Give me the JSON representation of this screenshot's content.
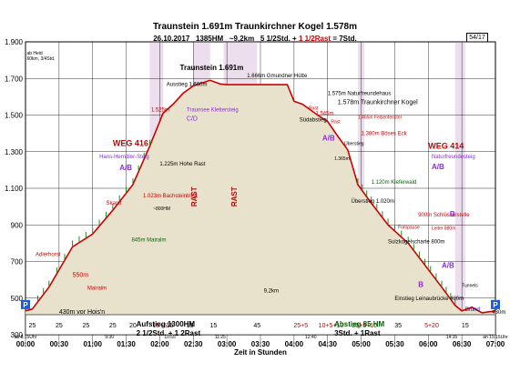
{
  "chart_data": {
    "type": "area",
    "title": "Traunstein 1.691m Traunkirchner Kogel 1.578m",
    "subtitle": "26.10.2017   1385HM   ~9,2km    5 1/2Std. + 1 1/2Rast = 7Std.",
    "subtitle_parts": {
      "date": "26.10.2017",
      "hm": "1385HM",
      "km": "~9,2km",
      "std": "5 1/2Std. +",
      "rast": "1 1/2Rast",
      "total": "= 7Std."
    },
    "page_number": "54/17",
    "xlabel": "Zeit in Stunden",
    "xlim": [
      0,
      7
    ],
    "ylim": [
      300,
      1900
    ],
    "y_ticks": [
      300,
      500,
      700,
      900,
      1100,
      1300,
      1500,
      1700,
      1900
    ],
    "y_tick_labels": [
      "300",
      "500",
      "700",
      "900",
      "1.100",
      "1.300",
      "1.500",
      "1.700",
      "1.900"
    ],
    "x_ticks": [
      0,
      0.5,
      1,
      1.5,
      2,
      2.5,
      3,
      3.5,
      4,
      4.5,
      5,
      5.5,
      6,
      6.5,
      7
    ],
    "x_tick_labels": [
      "00:00",
      "00:30",
      "01:00",
      "01:30",
      "02:00",
      "02:30",
      "03:00",
      "03:30",
      "04:00",
      "04:30",
      "05:00",
      "05:30",
      "06:00",
      "06:30",
      "07:00"
    ],
    "profile": {
      "x": [
        0,
        0.1,
        0.35,
        0.7,
        1.0,
        1.3,
        1.6,
        1.85,
        2.05,
        2.2,
        2.35,
        2.5,
        2.75,
        2.9,
        3.0,
        3.4,
        3.6,
        3.9,
        4.0,
        4.12,
        4.18,
        4.35,
        4.5,
        4.65,
        4.8,
        4.95,
        5.15,
        5.4,
        5.7,
        5.95,
        6.2,
        6.4,
        6.5,
        6.65,
        6.8,
        7.0
      ],
      "y": [
        430,
        440,
        560,
        780,
        850,
        980,
        1120,
        1330,
        1510,
        1560,
        1620,
        1660,
        1690,
        1670,
        1666,
        1666,
        1666,
        1666,
        1575,
        1560,
        1545,
        1500,
        1465,
        1385,
        1310,
        1120,
        1020,
        900,
        800,
        680,
        560,
        460,
        430,
        450,
        420,
        430
      ]
    },
    "rest_bands": [
      {
        "x0": 1.85,
        "x1": 2.05,
        "label": ""
      },
      {
        "x0": 2.5,
        "x1": 2.75,
        "label": "RAST"
      },
      {
        "x0": 2.95,
        "x1": 3.45,
        "label": "RAST"
      },
      {
        "x0": 4.95,
        "x1": 5.05,
        "label": ""
      },
      {
        "x0": 6.4,
        "x1": 6.55,
        "label": ""
      }
    ],
    "segment_minutes": [
      {
        "x": 0.1,
        "label": "25"
      },
      {
        "x": 0.5,
        "label": "25"
      },
      {
        "x": 0.9,
        "label": "25"
      },
      {
        "x": 1.3,
        "label": "25"
      },
      {
        "x": 1.6,
        "label": "20"
      },
      {
        "x": 2.0,
        "label": "15+5"
      },
      {
        "x": 2.15,
        "label": "15"
      },
      {
        "x": 2.45,
        "label": "15"
      },
      {
        "x": 2.8,
        "label": "15"
      },
      {
        "x": 3.45,
        "label": "45"
      },
      {
        "x": 4.1,
        "label": "25+5"
      },
      {
        "x": 4.55,
        "label": "10+5+10"
      },
      {
        "x": 5.05,
        "label": "20+5+10"
      },
      {
        "x": 5.55,
        "label": "35"
      },
      {
        "x": 6.05,
        "label": "5+20"
      },
      {
        "x": 6.55,
        "label": "15"
      }
    ],
    "times_bottom": [
      {
        "x": 0.0,
        "label": "ab 8:15Uhr"
      },
      {
        "x": 1.25,
        "label": "9:30"
      },
      {
        "x": 2.15,
        "label": "10:55"
      },
      {
        "x": 2.9,
        "label": "11:25"
      },
      {
        "x": 4.25,
        "label": "12:40"
      },
      {
        "x": 6.35,
        "label": "14:35"
      },
      {
        "x": 7.0,
        "label": "an 15:15Uhr"
      }
    ],
    "annotations": [
      {
        "x": 0.02,
        "y": 1830,
        "text": "ab Heid\n60km, 3/4Std.",
        "color": "#000000",
        "size": 5
      },
      {
        "x": 2.45,
        "y": 1830,
        "text": "",
        "color": "#000000",
        "size": 5
      },
      {
        "x": 1.3,
        "y": 1330,
        "text": "WEG 416",
        "color": "#cc0000",
        "size": 9
      },
      {
        "x": 1.1,
        "y": 1265,
        "text": "Hans-Herndler-Steig",
        "color": "#8a2be2",
        "size": 6
      },
      {
        "x": 1.4,
        "y": 1200,
        "text": "A/B",
        "color": "#8a2be2",
        "size": 8
      },
      {
        "x": 0.92,
        "y": 545,
        "text": "Mairalm",
        "color": "#cc0000",
        "size": 6
      },
      {
        "x": 0.7,
        "y": 615,
        "text": "550m",
        "color": "#cc0000",
        "size": 7
      },
      {
        "x": 0.15,
        "y": 730,
        "text": "Adlerhorst",
        "color": "#cc0000",
        "size": 6
      },
      {
        "x": 1.58,
        "y": 810,
        "text": "845m Mairalm",
        "color": "#006400",
        "size": 6
      },
      {
        "x": 1.2,
        "y": 1010,
        "text": "Skarst",
        "color": "#cc0000",
        "size": 6
      },
      {
        "x": 1.75,
        "y": 1050,
        "text": "1.023m Bachsteinblick",
        "color": "#cc0000",
        "size": 6
      },
      {
        "x": 1.9,
        "y": 980,
        "text": "~800HM",
        "color": "#000000",
        "size": 5
      },
      {
        "x": 2.0,
        "y": 1225,
        "text": "1.225m Hohe Rast",
        "color": "#000000",
        "size": 6
      },
      {
        "x": 1.87,
        "y": 1520,
        "text": "1.525m",
        "color": "#cc0000",
        "size": 6
      },
      {
        "x": 2.1,
        "y": 1660,
        "text": "Ausstieg 1.660m",
        "color": "#000000",
        "size": 6
      },
      {
        "x": 2.4,
        "y": 1520,
        "text": "Traunsee Klettersteig",
        "color": "#8a2be2",
        "size": 6
      },
      {
        "x": 2.4,
        "y": 1470,
        "text": "C/D",
        "color": "#8a2be2",
        "size": 7
      },
      {
        "x": 2.3,
        "y": 1745,
        "text": "Traunstein 1.691m",
        "color": "#000000",
        "size": 8
      },
      {
        "x": 3.3,
        "y": 1705,
        "text": "1.666m Gmundner Hütte",
        "color": "#000000",
        "size": 6
      },
      {
        "x": 4.5,
        "y": 1610,
        "text": "1.575m Naturfreundehaus",
        "color": "#000000",
        "size": 6
      },
      {
        "x": 4.65,
        "y": 1560,
        "text": "1.578m Traunkirchner Kogel",
        "color": "#000000",
        "size": 7
      },
      {
        "x": 4.22,
        "y": 1530,
        "text": "Rast",
        "color": "#cc0000",
        "size": 5
      },
      {
        "x": 4.08,
        "y": 1465,
        "text": "Südabstieg",
        "color": "#000000",
        "size": 6
      },
      {
        "x": 4.32,
        "y": 1500,
        "text": "1.545m",
        "color": "#cc0000",
        "size": 6
      },
      {
        "x": 4.55,
        "y": 1455,
        "text": "Rast",
        "color": "#cc0000",
        "size": 5
      },
      {
        "x": 4.42,
        "y": 1360,
        "text": "A/B",
        "color": "#8a2be2",
        "size": 8
      },
      {
        "x": 4.95,
        "y": 1480,
        "text": "1.465m Felsenfenster",
        "color": "#cc0000",
        "size": 5
      },
      {
        "x": 5.0,
        "y": 1390,
        "text": "1.380m Böses Eck",
        "color": "#cc0000",
        "size": 6
      },
      {
        "x": 4.75,
        "y": 1335,
        "text": "Überstieg",
        "color": "#000000",
        "size": 5
      },
      {
        "x": 4.6,
        "y": 1255,
        "text": "1.365m",
        "color": "#000000",
        "size": 5
      },
      {
        "x": 5.15,
        "y": 1125,
        "text": "1.120m Kieferwald",
        "color": "#006400",
        "size": 6
      },
      {
        "x": 4.85,
        "y": 1020,
        "text": "Überstieg 1.020m",
        "color": "#000000",
        "size": 6
      },
      {
        "x": 5.85,
        "y": 945,
        "text": "900m Schlüsselstelle",
        "color": "#cc0000",
        "size": 6
      },
      {
        "x": 6.32,
        "y": 945,
        "text": "B",
        "color": "#8a2be2",
        "size": 8
      },
      {
        "x": 5.55,
        "y": 880,
        "text": "Fotopause",
        "color": "#cc0000",
        "size": 5
      },
      {
        "x": 6.05,
        "y": 875,
        "text": "Leiter 880m",
        "color": "#cc0000",
        "size": 5
      },
      {
        "x": 5.4,
        "y": 800,
        "text": "Sulzkogelscharte 800m",
        "color": "#000000",
        "size": 6
      },
      {
        "x": 6.0,
        "y": 1315,
        "text": "WEG 414",
        "color": "#cc0000",
        "size": 9
      },
      {
        "x": 6.05,
        "y": 1265,
        "text": "Naturfreundesteig",
        "color": "#8a2be2",
        "size": 6
      },
      {
        "x": 6.05,
        "y": 1205,
        "text": "A/B",
        "color": "#8a2be2",
        "size": 8
      },
      {
        "x": 6.2,
        "y": 665,
        "text": "A/B",
        "color": "#8a2be2",
        "size": 8
      },
      {
        "x": 5.85,
        "y": 560,
        "text": "B",
        "color": "#8a2be2",
        "size": 8
      },
      {
        "x": 5.5,
        "y": 490,
        "text": "Einstieg Leinaubrücke 480m",
        "color": "#000000",
        "size": 6
      },
      {
        "x": 6.5,
        "y": 560,
        "text": "Tunnels",
        "color": "#000000",
        "size": 5
      },
      {
        "x": 6.55,
        "y": 430,
        "text": "Bründ",
        "color": "#0000cc",
        "size": 6
      },
      {
        "x": 6.95,
        "y": 415,
        "text": "430m",
        "color": "#000000",
        "size": 6
      },
      {
        "x": 0.5,
        "y": 415,
        "text": "430m vor Hois'n",
        "color": "#000000",
        "size": 7
      },
      {
        "x": 3.55,
        "y": 530,
        "text": "9,2km",
        "color": "#000000",
        "size": 6
      },
      {
        "x": 1.65,
        "y": 345,
        "text": "Aufstieg 1300HM",
        "color": "#000000",
        "size": 8
      },
      {
        "x": 1.65,
        "y": 295,
        "text": "2 1/2Std.  +  1 2Rast",
        "color": "#000000",
        "size": 8
      },
      {
        "x": 4.6,
        "y": 345,
        "text": "Abstieg 85 HM",
        "color": "#006400",
        "size": 8
      },
      {
        "x": 4.6,
        "y": 295,
        "text": "3Std. + 1Rast",
        "color": "#000000",
        "size": 8
      }
    ],
    "rast_labels": [
      {
        "x": 2.55,
        "y": 1000,
        "text": "RAST"
      },
      {
        "x": 3.15,
        "y": 1000,
        "text": "RAST"
      }
    ]
  },
  "colors": {
    "fill": "#e8e2cc",
    "line": "#cc0000",
    "rest_fill": "#c8a0c8",
    "bottom_band": "#ffffff"
  }
}
